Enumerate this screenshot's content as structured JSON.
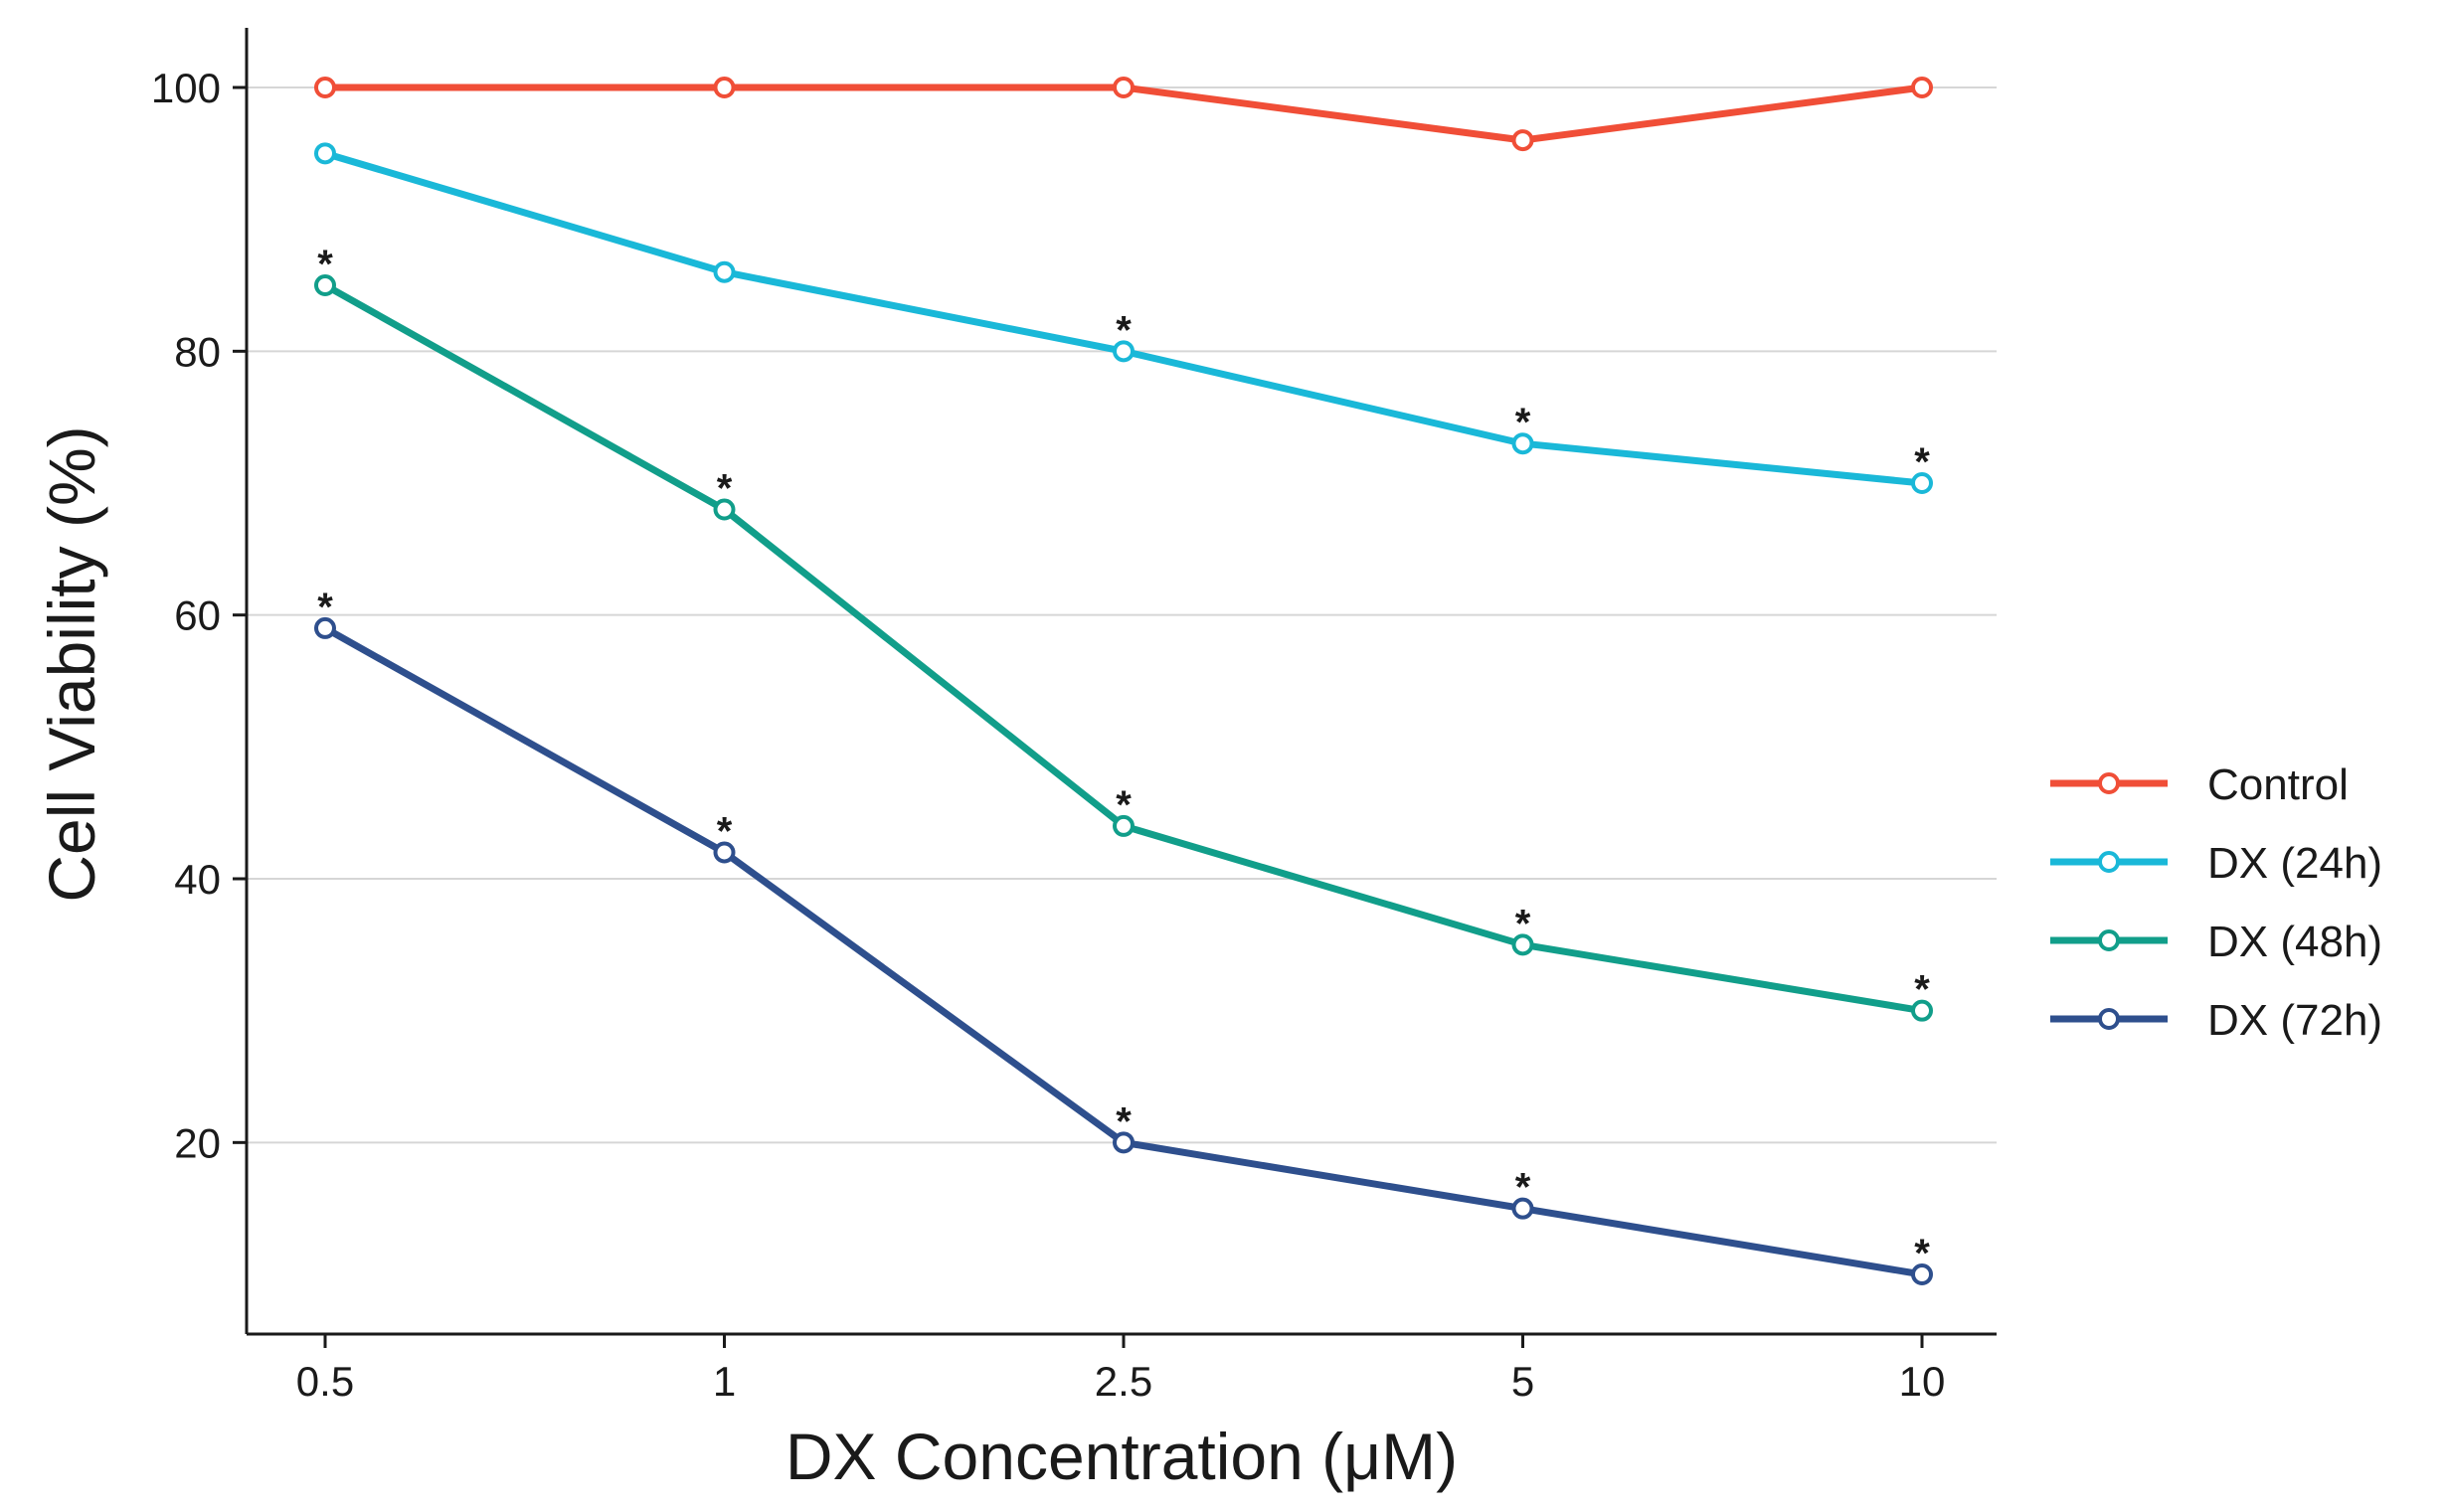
{
  "chart_data": {
    "type": "line",
    "title": "",
    "xlabel": "DX Concentration (μM)",
    "ylabel": "Cell Viability (%)",
    "categories": [
      "0.5",
      "1",
      "2.5",
      "5",
      "10"
    ],
    "ylim": [
      5,
      105
    ],
    "yticks": [
      20,
      40,
      60,
      80,
      100
    ],
    "grid": "horizontal",
    "legend_position": "right",
    "significance_marker": "*",
    "series": [
      {
        "name": "Control",
        "color": "#f04e37",
        "values": [
          100,
          100,
          100,
          96,
          100
        ],
        "significant": [
          false,
          false,
          false,
          false,
          false
        ]
      },
      {
        "name": "DX (24h)",
        "color": "#1ab8d8",
        "values": [
          95,
          86,
          80,
          73,
          70
        ],
        "significant": [
          false,
          false,
          true,
          true,
          true
        ]
      },
      {
        "name": "DX (48h)",
        "color": "#119e8a",
        "values": [
          85,
          68,
          44,
          35,
          30
        ],
        "significant": [
          true,
          true,
          true,
          true,
          true
        ]
      },
      {
        "name": "DX (72h)",
        "color": "#2e4f8d",
        "values": [
          59,
          42,
          20,
          15,
          10
        ],
        "significant": [
          true,
          true,
          true,
          true,
          true
        ]
      }
    ]
  }
}
